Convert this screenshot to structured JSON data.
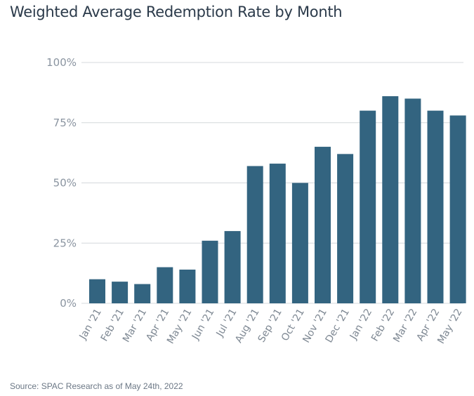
{
  "chart_data": {
    "type": "bar",
    "title": "Weighted Average Redemption Rate by Month",
    "xlabel": "",
    "ylabel": "",
    "categories": [
      "Jan '21",
      "Feb '21",
      "Mar '21",
      "Apr '21",
      "May '21",
      "Jun '21",
      "Jul '21",
      "Aug '21",
      "Sep '21",
      "Oct '21",
      "Nov '21",
      "Dec '21",
      "Jan '22",
      "Feb '22",
      "Mar '22",
      "Apr '22",
      "May '22"
    ],
    "values": [
      10,
      9,
      8,
      15,
      14,
      26,
      30,
      57,
      58,
      50,
      65,
      62,
      80,
      86,
      85,
      80,
      78
    ],
    "ylim": [
      0,
      100
    ],
    "yticks": [
      "0%",
      "25%",
      "50%",
      "75%",
      "100%"
    ],
    "ytick_values": [
      0,
      25,
      50,
      75,
      100
    ],
    "grid": true,
    "bar_color": "#336480",
    "grid_color": "#d4d8dc"
  },
  "source_note": "Source: SPAC Research as of May 24th, 2022"
}
